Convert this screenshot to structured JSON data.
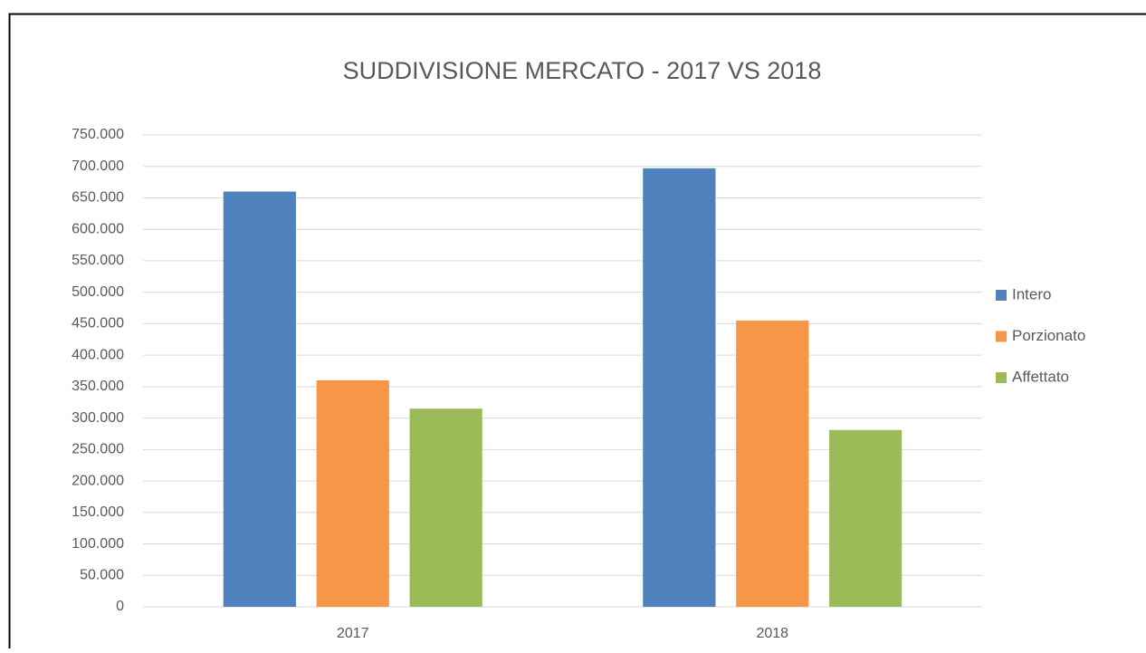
{
  "chart_data": {
    "type": "bar",
    "title": "SUDDIVISIONE MERCATO - 2017 VS 2018",
    "categories": [
      "2017",
      "2018"
    ],
    "series": [
      {
        "name": "Intero",
        "color": "#4f81bd",
        "values": [
          660000,
          697000
        ]
      },
      {
        "name": "Porzionato",
        "color": "#f79646",
        "values": [
          360000,
          455000
        ]
      },
      {
        "name": "Affettato",
        "color": "#9bbb59",
        "values": [
          315000,
          281000
        ]
      }
    ],
    "ylim": [
      0,
      750000
    ],
    "yticks": [
      0,
      {
        "value": 50000,
        "label": "50.000"
      },
      {
        "value": 100000,
        "label": "100.000"
      },
      {
        "value": 150000,
        "label": "150.000"
      },
      {
        "value": 200000,
        "label": "200.000"
      },
      {
        "value": 250000,
        "label": "250.000"
      },
      {
        "value": 300000,
        "label": "300.000"
      },
      {
        "value": 350000,
        "label": "350.000"
      },
      {
        "value": 400000,
        "label": "400.000"
      },
      {
        "value": 450000,
        "label": "450.000"
      },
      {
        "value": 500000,
        "label": "500.000"
      },
      {
        "value": 550000,
        "label": "550.000"
      },
      {
        "value": 600000,
        "label": "600.000"
      },
      {
        "value": 650000,
        "label": "650.000"
      },
      {
        "value": 700000,
        "label": "700.000"
      },
      {
        "value": 750000,
        "label": "750.000"
      }
    ],
    "grid": true,
    "legend": "right"
  }
}
